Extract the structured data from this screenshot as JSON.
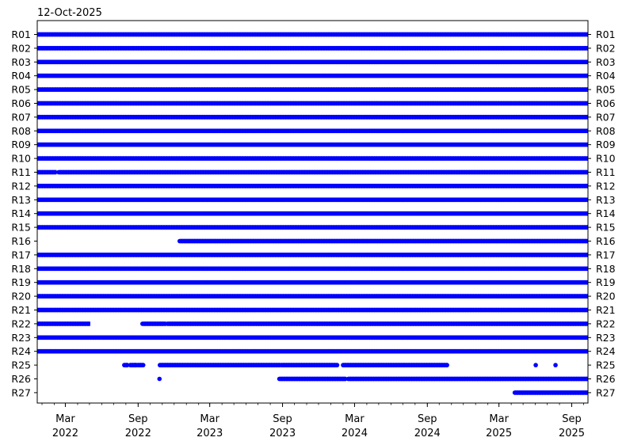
{
  "chart_data": {
    "type": "scatter",
    "title": "12-Oct-2025",
    "xlabel": "",
    "ylabel": "",
    "x_type": "date",
    "xlim": [
      "2021-12-20",
      "2025-10-12"
    ],
    "x_ticks": [
      {
        "date": "2022-03-01",
        "label": [
          "Mar",
          "2022"
        ]
      },
      {
        "date": "2022-09-01",
        "label": [
          "Sep",
          "2022"
        ]
      },
      {
        "date": "2023-03-01",
        "label": [
          "Mar",
          "2023"
        ]
      },
      {
        "date": "2023-09-01",
        "label": [
          "Sep",
          "2023"
        ]
      },
      {
        "date": "2024-03-01",
        "label": [
          "Mar",
          "2024"
        ]
      },
      {
        "date": "2024-09-01",
        "label": [
          "Sep",
          "2024"
        ]
      },
      {
        "date": "2025-03-01",
        "label": [
          "Mar",
          "2025"
        ]
      },
      {
        "date": "2025-09-01",
        "label": [
          "Sep",
          "2025"
        ]
      }
    ],
    "categories": [
      "R01",
      "R02",
      "R03",
      "R04",
      "R05",
      "R06",
      "R07",
      "R08",
      "R09",
      "R10",
      "R11",
      "R12",
      "R13",
      "R14",
      "R15",
      "R16",
      "R17",
      "R18",
      "R19",
      "R20",
      "R21",
      "R22",
      "R23",
      "R24",
      "R25",
      "R26",
      "R27"
    ],
    "marker_color": "#0000ff",
    "grid": false,
    "legend": "none",
    "series": [
      {
        "row": "R01",
        "ranges": [
          [
            "2021-12-20",
            "2025-10-12"
          ]
        ],
        "points": []
      },
      {
        "row": "R02",
        "ranges": [
          [
            "2021-12-20",
            "2025-10-12"
          ]
        ],
        "points": []
      },
      {
        "row": "R03",
        "ranges": [
          [
            "2021-12-20",
            "2025-10-12"
          ]
        ],
        "points": []
      },
      {
        "row": "R04",
        "ranges": [
          [
            "2021-12-20",
            "2025-10-12"
          ]
        ],
        "points": []
      },
      {
        "row": "R05",
        "ranges": [
          [
            "2021-12-20",
            "2025-10-12"
          ]
        ],
        "points": []
      },
      {
        "row": "R06",
        "ranges": [
          [
            "2021-12-20",
            "2025-10-12"
          ]
        ],
        "points": []
      },
      {
        "row": "R07",
        "ranges": [
          [
            "2021-12-20",
            "2025-10-12"
          ]
        ],
        "points": []
      },
      {
        "row": "R08",
        "ranges": [
          [
            "2021-12-20",
            "2025-10-12"
          ]
        ],
        "points": []
      },
      {
        "row": "R09",
        "ranges": [
          [
            "2021-12-20",
            "2025-10-12"
          ]
        ],
        "points": []
      },
      {
        "row": "R10",
        "ranges": [
          [
            "2021-12-20",
            "2025-10-12"
          ]
        ],
        "points": []
      },
      {
        "row": "R11",
        "ranges": [
          [
            "2021-12-20",
            "2022-02-07"
          ],
          [
            "2022-02-12",
            "2025-10-12"
          ]
        ],
        "points": []
      },
      {
        "row": "R12",
        "ranges": [
          [
            "2021-12-20",
            "2025-10-12"
          ]
        ],
        "points": []
      },
      {
        "row": "R13",
        "ranges": [
          [
            "2021-12-20",
            "2025-10-12"
          ]
        ],
        "points": []
      },
      {
        "row": "R14",
        "ranges": [
          [
            "2021-12-20",
            "2025-10-12"
          ]
        ],
        "points": []
      },
      {
        "row": "R15",
        "ranges": [
          [
            "2021-12-20",
            "2025-10-12"
          ]
        ],
        "points": []
      },
      {
        "row": "R16",
        "ranges": [
          [
            "2022-12-15",
            "2025-10-12"
          ]
        ],
        "points": []
      },
      {
        "row": "R17",
        "ranges": [
          [
            "2021-12-20",
            "2025-10-12"
          ]
        ],
        "points": []
      },
      {
        "row": "R18",
        "ranges": [
          [
            "2021-12-20",
            "2025-10-12"
          ]
        ],
        "points": []
      },
      {
        "row": "R19",
        "ranges": [
          [
            "2021-12-20",
            "2025-10-12"
          ]
        ],
        "points": []
      },
      {
        "row": "R20",
        "ranges": [
          [
            "2021-12-20",
            "2025-10-12"
          ]
        ],
        "points": []
      },
      {
        "row": "R21",
        "ranges": [
          [
            "2021-12-20",
            "2025-10-12"
          ]
        ],
        "points": []
      },
      {
        "row": "R22",
        "ranges": [
          [
            "2021-12-20",
            "2022-05-03"
          ],
          [
            "2022-09-12",
            "2022-11-10"
          ],
          [
            "2022-11-14",
            "2025-10-12"
          ]
        ],
        "points": []
      },
      {
        "row": "R23",
        "ranges": [
          [
            "2021-12-20",
            "2025-10-12"
          ]
        ],
        "points": []
      },
      {
        "row": "R24",
        "ranges": [
          [
            "2021-12-20",
            "2025-10-12"
          ]
        ],
        "points": []
      },
      {
        "row": "R25",
        "ranges": [
          [
            "2022-07-28",
            "2022-08-07"
          ],
          [
            "2022-08-12",
            "2022-08-30"
          ],
          [
            "2022-09-01",
            "2022-09-14"
          ],
          [
            "2022-10-26",
            "2023-08-27"
          ],
          [
            "2023-08-29",
            "2024-01-17"
          ],
          [
            "2024-02-01",
            "2024-10-22"
          ]
        ],
        "points": [
          "2022-08-24",
          "2025-06-02",
          "2025-07-22"
        ]
      },
      {
        "row": "R26",
        "ranges": [
          [
            "2023-08-24",
            "2024-02-08"
          ],
          [
            "2024-02-14",
            "2025-10-12"
          ]
        ],
        "points": [
          "2022-10-25"
        ]
      },
      {
        "row": "R27",
        "ranges": [
          [
            "2025-04-10",
            "2025-10-12"
          ]
        ],
        "points": []
      }
    ]
  }
}
